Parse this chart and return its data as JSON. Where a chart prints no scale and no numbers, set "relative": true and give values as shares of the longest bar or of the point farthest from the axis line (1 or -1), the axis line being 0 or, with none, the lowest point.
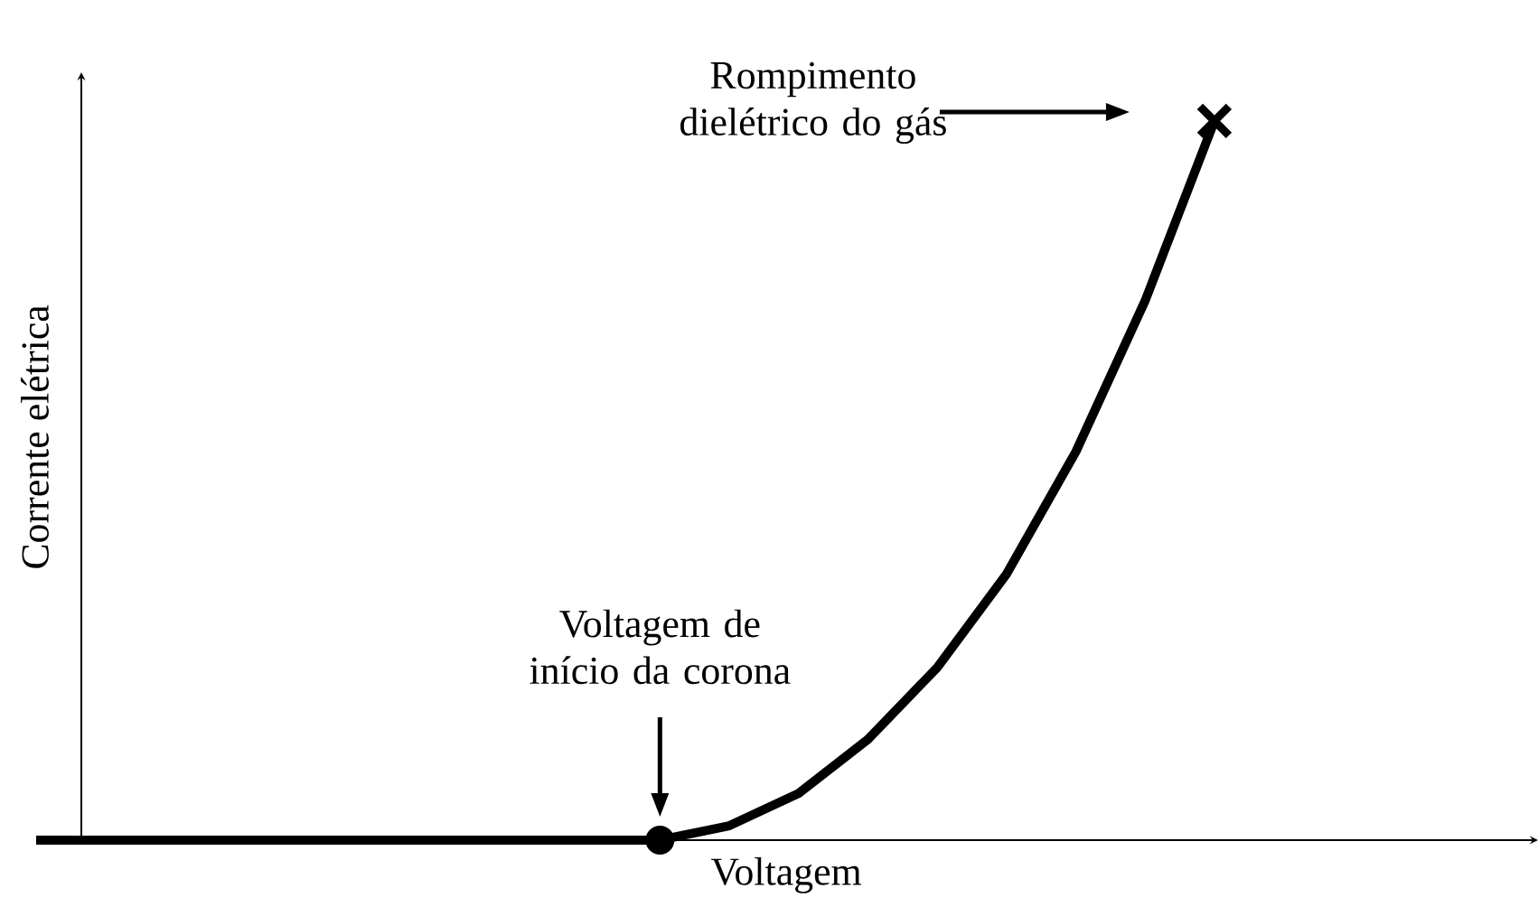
{
  "chart_data": {
    "type": "line",
    "relative": true,
    "xlabel": "Voltagem",
    "ylabel": "Corrente elétrica",
    "categories": [
      null,
      null,
      null,
      null,
      null,
      null,
      null,
      null,
      null,
      null,
      null,
      null,
      null,
      null,
      null,
      null,
      null,
      null
    ],
    "series": [
      {
        "color": "#000000",
        "values": [
          0,
          0,
          0,
          0,
          0,
          0,
          0,
          0,
          0,
          0,
          0.02,
          0.065,
          0.14,
          0.24,
          0.37,
          0.54,
          0.75,
          1
        ]
      }
    ],
    "annotations": [
      "Voltagem de início da corona",
      "Rompimento dielétrico do gás"
    ]
  }
}
